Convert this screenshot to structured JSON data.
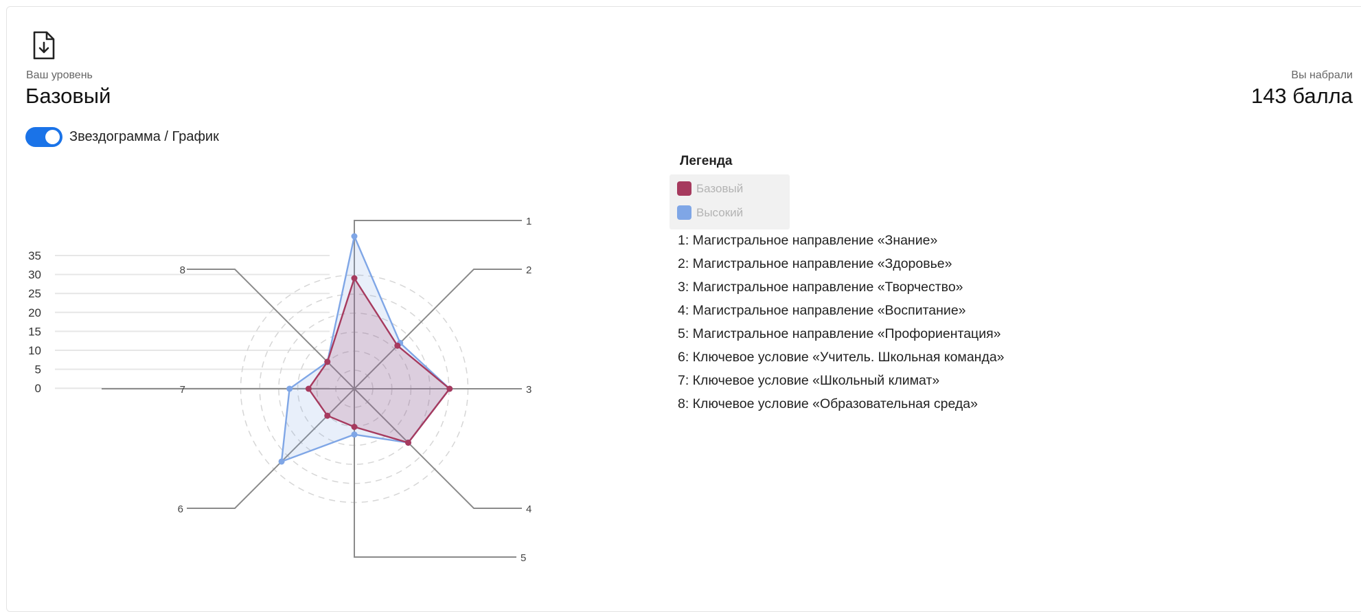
{
  "header": {
    "download_icon": "file-download-icon",
    "level_caption": "Ваш уровень",
    "level_value": "Базовый",
    "score_caption": "Вы набрали",
    "score_value": "143 балла"
  },
  "toggle": {
    "label": "Звездограмма / График",
    "on": true,
    "color": "#1a73e8"
  },
  "legend": {
    "title": "Легенда",
    "items": [
      {
        "label": "Базовый",
        "color": "#a63a5e"
      },
      {
        "label": "Высокий",
        "color": "#7fa6e6"
      }
    ]
  },
  "axes_descriptions": [
    "1: Магистральное направление «Знание»",
    "2: Магистральное направление «Здоровье»",
    "3: Магистральное направление «Творчество»",
    "4: Магистральное направление «Воспитание»",
    "5: Магистральное направление «Профориентация»",
    "6: Ключевое условие «Учитель. Школьная команда»",
    "7: Ключевое условие «Школьный климат»",
    "8: Ключевое условие «Образовательная среда»"
  ],
  "chart_data": {
    "type": "radar",
    "axes": [
      "1",
      "2",
      "3",
      "4",
      "5",
      "6",
      "7",
      "8"
    ],
    "ticks": [
      35,
      30,
      25,
      20,
      15,
      10,
      5,
      0
    ],
    "range": [
      0,
      35
    ],
    "series": [
      {
        "name": "Базовый",
        "color": "#a63a5e",
        "values": [
          29,
          16,
          25,
          20,
          10,
          10,
          12,
          10
        ]
      },
      {
        "name": "Высокий",
        "color": "#7fa6e6",
        "values": [
          40,
          17,
          25,
          20,
          12,
          27,
          17,
          10
        ]
      }
    ]
  }
}
